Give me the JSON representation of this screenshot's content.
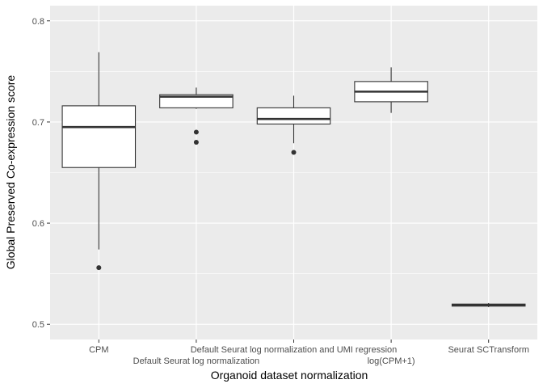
{
  "chart_data": {
    "type": "box",
    "title": "",
    "xlabel": "Organoid dataset normalization",
    "ylabel": "Global Preserved Co-expression score",
    "ylim": [
      0.485,
      0.815
    ],
    "yticks": [
      0.5,
      0.6,
      0.7,
      0.8
    ],
    "ytick_labels": [
      "0.5",
      "0.6",
      "0.7",
      "0.8"
    ],
    "grid": true,
    "legend": "none",
    "colors": {
      "panel_background": "#ebebeb",
      "grid_line": "#ffffff",
      "box_fill": "#ffffff",
      "box_stroke": "#333333",
      "outlier": "#333333"
    },
    "categories": [
      "CPM",
      "Default Seurat log normalization",
      "Default Seurat log normalization and UMI regression",
      "log(CPM+1)",
      "Seurat SCTransform"
    ],
    "category_label_rows": [
      0,
      1,
      0,
      1,
      0
    ],
    "boxes": [
      {
        "category": "CPM",
        "min": 0.574,
        "q1": 0.655,
        "median": 0.695,
        "q3": 0.716,
        "max": 0.769,
        "outliers": [
          0.556
        ]
      },
      {
        "category": "Default Seurat log normalization",
        "min": 0.713,
        "q1": 0.714,
        "median": 0.725,
        "q3": 0.727,
        "max": 0.734,
        "outliers": [
          0.69,
          0.68
        ]
      },
      {
        "category": "Default Seurat log normalization and UMI regression",
        "min": 0.679,
        "q1": 0.698,
        "median": 0.703,
        "q3": 0.714,
        "max": 0.726,
        "outliers": [
          0.67
        ]
      },
      {
        "category": "log(CPM+1)",
        "min": 0.709,
        "q1": 0.72,
        "median": 0.73,
        "q3": 0.74,
        "max": 0.754,
        "outliers": []
      },
      {
        "category": "Seurat SCTransform",
        "min": 0.517,
        "q1": 0.518,
        "median": 0.519,
        "q3": 0.52,
        "max": 0.521,
        "outliers": []
      }
    ]
  }
}
